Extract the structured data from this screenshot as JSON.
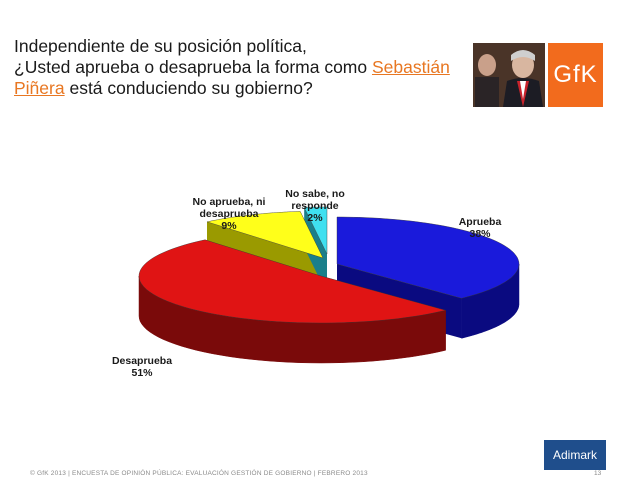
{
  "slide": {
    "title_line1": "Independiente de su posición política,",
    "title_line2_pre": "¿Usted aprueba o desaprueba la forma como ",
    "title_name_a": "Sebastián",
    "title_name_b": "Piñera",
    "title_line3_post": " está conduciendo su gobierno?",
    "logo_text": "GfK",
    "footer": "© GfK 2013 | ENCUESTA DE OPINIÓN PÚBLICA: EVALUACIÓN GESTIÓN DE GOBIERNO | FEBRERO 2013",
    "page_number": "13",
    "brand": "Adimark"
  },
  "chart_data": {
    "type": "pie",
    "title": "",
    "slices": [
      {
        "label": "Aprueba",
        "value": 38,
        "value_label": "38%",
        "color": "#1a1adb",
        "side": "#0a0a80"
      },
      {
        "label": "Desaprueba",
        "value": 51,
        "value_label": "51%",
        "color": "#e01414",
        "side": "#7a0a0a"
      },
      {
        "label": "No aprueba, ni desaprueba",
        "value": 9,
        "value_label": "9%",
        "color": "#ffff1a",
        "side": "#9a9a00"
      },
      {
        "label": "No sabe, no responde",
        "value": 2,
        "value_label": "2%",
        "color": "#3fe0f0",
        "side": "#1a7f8a"
      }
    ]
  }
}
